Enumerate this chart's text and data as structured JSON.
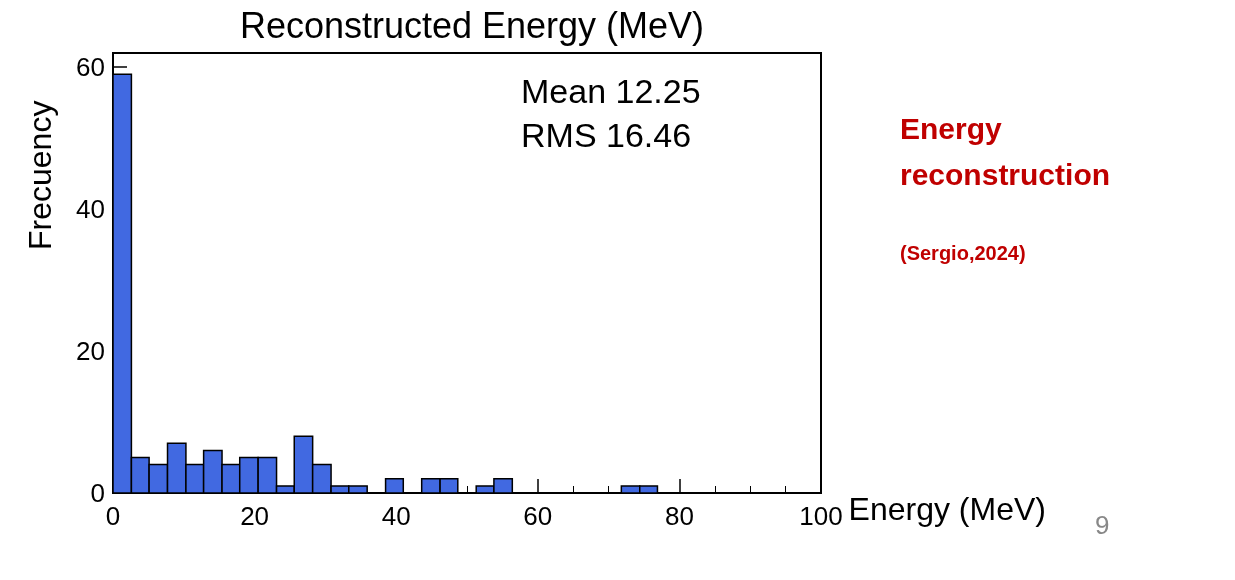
{
  "chart_data": {
    "type": "histogram",
    "title": "Reconstructed Energy (MeV)",
    "xlabel": "Energy (MeV)",
    "ylabel": "Frecuency",
    "bins": [
      0,
      2.6,
      5.1,
      7.7,
      10.3,
      12.8,
      15.4,
      17.9,
      20.5,
      23.1,
      25.6,
      28.2,
      30.8,
      33.3,
      35.9,
      38.5,
      41.0,
      43.6,
      46.2,
      48.7,
      51.3,
      53.8,
      56.4,
      71.8,
      74.4,
      76.9
    ],
    "values": [
      59,
      5,
      4,
      7,
      4,
      6,
      4,
      5,
      5,
      1,
      8,
      4,
      1,
      1,
      0,
      2,
      0,
      2,
      2,
      0,
      1,
      2,
      0,
      1,
      1
    ],
    "color": "#4169e1",
    "xlim": [
      0,
      100
    ],
    "xticks": [
      0,
      20,
      40,
      60,
      80,
      100
    ],
    "ylim": [
      0,
      62
    ],
    "yticks": [
      0,
      20,
      40,
      60
    ],
    "grid": false,
    "annotations": [
      "Mean 12.25",
      "RMS 16.46",
      "Energy reconstruction",
      "(Sergio,2024)",
      "9"
    ]
  }
}
